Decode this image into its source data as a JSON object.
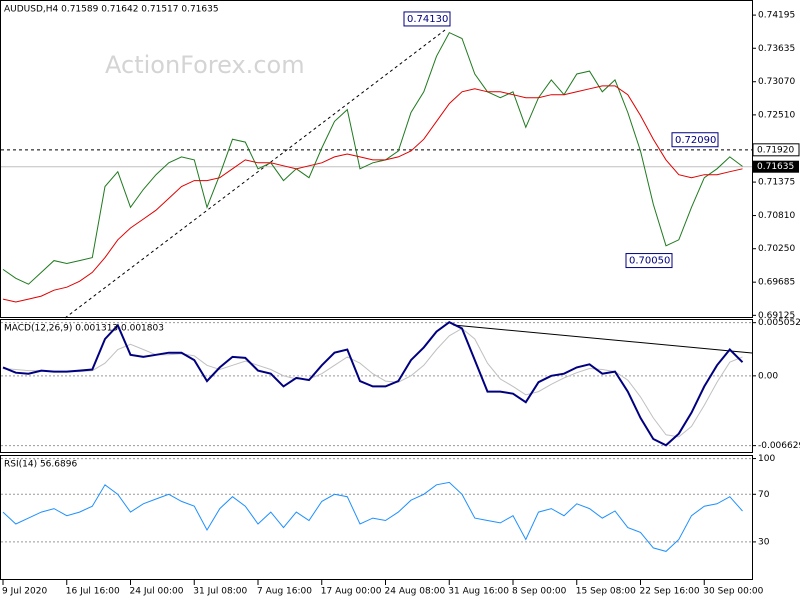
{
  "chart_data": [
    {
      "type": "line",
      "title": "AUDUSD,H4  0.71589 0.71642 0.71517 0.71635",
      "watermark": "ActionForex.com",
      "ylim": [
        0.6908,
        0.7445
      ],
      "yticks": [
        0.74195,
        0.73635,
        {
          "value": 0.7307,
          "label": "0.73070"
        },
        {
          "value": 0.7251,
          "label": "0.72510"
        },
        0.71375,
        {
          "value": 0.7081,
          "label": "0.70810"
        },
        {
          "value": 0.7025,
          "label": "0.70250"
        },
        0.69685,
        0.69125
      ],
      "grid": false,
      "series": [
        {
          "color": "#1f7a1f",
          "width": 1,
          "values": [
            0.699,
            0.6975,
            0.6965,
            0.6985,
            0.7005,
            0.7,
            0.7005,
            0.701,
            0.713,
            0.7155,
            0.7095,
            0.7125,
            0.715,
            0.717,
            0.718,
            0.7175,
            0.7095,
            0.715,
            0.721,
            0.7205,
            0.716,
            0.717,
            0.714,
            0.716,
            0.7145,
            0.7195,
            0.724,
            0.726,
            0.716,
            0.717,
            0.7175,
            0.719,
            0.7255,
            0.729,
            0.735,
            0.739,
            0.738,
            0.732,
            0.729,
            0.728,
            0.729,
            0.723,
            0.728,
            0.731,
            0.7285,
            0.732,
            0.7325,
            0.729,
            0.731,
            0.7255,
            0.719,
            0.71,
            0.703,
            0.704,
            0.7095,
            0.7145,
            0.716,
            0.718,
            0.7164
          ]
        },
        {
          "color": "#e00000",
          "width": 1,
          "values": [
            0.694,
            0.6935,
            0.694,
            0.6945,
            0.6955,
            0.696,
            0.697,
            0.6985,
            0.701,
            0.704,
            0.706,
            0.7075,
            0.709,
            0.711,
            0.713,
            0.714,
            0.714,
            0.7145,
            0.716,
            0.7175,
            0.717,
            0.717,
            0.7165,
            0.716,
            0.7165,
            0.717,
            0.718,
            0.7185,
            0.718,
            0.7175,
            0.7175,
            0.718,
            0.719,
            0.721,
            0.724,
            0.727,
            0.729,
            0.7295,
            0.729,
            0.729,
            0.7285,
            0.728,
            0.728,
            0.7285,
            0.7285,
            0.729,
            0.7295,
            0.73,
            0.73,
            0.7285,
            0.725,
            0.721,
            0.7175,
            0.715,
            0.7145,
            0.715,
            0.715,
            0.7155,
            0.716
          ]
        }
      ],
      "levels": [
        {
          "value": 0.7192,
          "label": "0.71920"
        }
      ],
      "last_price": 0.71635,
      "annotations": [
        {
          "value": 0.7413,
          "label": "0.74130"
        },
        {
          "value": 0.7209,
          "label": "0.72090"
        },
        {
          "value": 0.7005,
          "label": "0.70050"
        }
      ]
    },
    {
      "type": "line",
      "title": "MACD(12,26,9) 0.001313 0.001803",
      "ylim": [
        -0.00733,
        0.0054
      ],
      "yticks": [
        0.005052,
        {
          "value": 0,
          "label": "0.00"
        },
        -0.006629
      ],
      "grid": true,
      "series": [
        {
          "color": "#c0c0c0",
          "width": 1,
          "values": [
            0.0007,
            0.0006,
            0.0005,
            0.0005,
            0.0004,
            0.0004,
            0.0004,
            0.0005,
            0.0012,
            0.0025,
            0.003,
            0.0025,
            0.002,
            0.002,
            0.0021,
            0.0019,
            0.001,
            0.0006,
            0.001,
            0.0014,
            0.001,
            0.0006,
            0,
            -0.0003,
            -0.0003,
            0.0002,
            0.001,
            0.0018,
            0.0012,
            0.0002,
            -0.0005,
            -0.0006,
            0,
            0.001,
            0.0025,
            0.0038,
            0.0045,
            0.0035,
            0.0012,
            -0.0003,
            -0.001,
            -0.0018,
            -0.0015,
            -0.0008,
            -0.0002,
            0.0003,
            0.0007,
            0.0006,
            0.0004,
            -0.0004,
            -0.002,
            -0.004,
            -0.0056,
            -0.0058,
            -0.0048,
            -0.0028,
            -0.0006,
            0.0013,
            0.0018
          ]
        },
        {
          "color": "#000080",
          "width": 2,
          "values": [
            0.0008,
            0.0003,
            0.0002,
            0.0005,
            0.0004,
            0.0004,
            0.0005,
            0.0006,
            0.0035,
            0.0048,
            0.002,
            0.0018,
            0.002,
            0.0022,
            0.0022,
            0.0015,
            -0.0005,
            0.0008,
            0.0018,
            0.0017,
            0.0005,
            0.0002,
            -0.001,
            -0.0002,
            -0.0004,
            0.001,
            0.0022,
            0.0025,
            -0.0005,
            -0.001,
            -0.001,
            -0.0005,
            0.0015,
            0.0027,
            0.0042,
            0.0051,
            0.0045,
            0.0015,
            -0.0015,
            -0.0015,
            -0.0017,
            -0.0025,
            -0.0006,
            0,
            0.0002,
            0.0008,
            0.0011,
            0.0002,
            0.0004,
            -0.0015,
            -0.004,
            -0.006,
            -0.0066,
            -0.0055,
            -0.0035,
            -0.001,
            0.001,
            0.0025,
            0.0013
          ]
        }
      ]
    },
    {
      "type": "line",
      "title": "RSI(14) 56.6896",
      "ylim": [
        -2,
        103
      ],
      "yticks": [
        100,
        70,
        30
      ],
      "grid": true,
      "categories": [
        "9 Jul 2020",
        null,
        null,
        null,
        null,
        "16 Jul 16:00",
        null,
        null,
        null,
        null,
        "24 Jul 00:00",
        null,
        null,
        null,
        null,
        "31 Jul 08:00",
        null,
        null,
        null,
        null,
        "7 Aug 16:00",
        null,
        null,
        null,
        null,
        "17 Aug 00:00",
        null,
        null,
        null,
        null,
        "24 Aug 08:00",
        null,
        null,
        null,
        null,
        "31 Aug 16:00",
        null,
        null,
        null,
        null,
        "8 Sep 00:00",
        null,
        null,
        null,
        null,
        "15 Sep 08:00",
        null,
        null,
        null,
        null,
        "22 Sep 16:00",
        null,
        null,
        null,
        null,
        "30 Sep 00:00",
        null,
        null,
        null
      ],
      "series": [
        {
          "color": "#1e90ff",
          "width": 1,
          "values": [
            55,
            45,
            50,
            55,
            58,
            52,
            55,
            60,
            78,
            70,
            55,
            62,
            66,
            70,
            64,
            60,
            40,
            58,
            68,
            60,
            45,
            55,
            42,
            55,
            48,
            64,
            70,
            68,
            45,
            50,
            48,
            55,
            65,
            70,
            78,
            80,
            70,
            50,
            48,
            46,
            52,
            32,
            55,
            58,
            52,
            62,
            58,
            50,
            56,
            42,
            38,
            25,
            22,
            32,
            52,
            60,
            62,
            68,
            56
          ]
        }
      ]
    }
  ]
}
